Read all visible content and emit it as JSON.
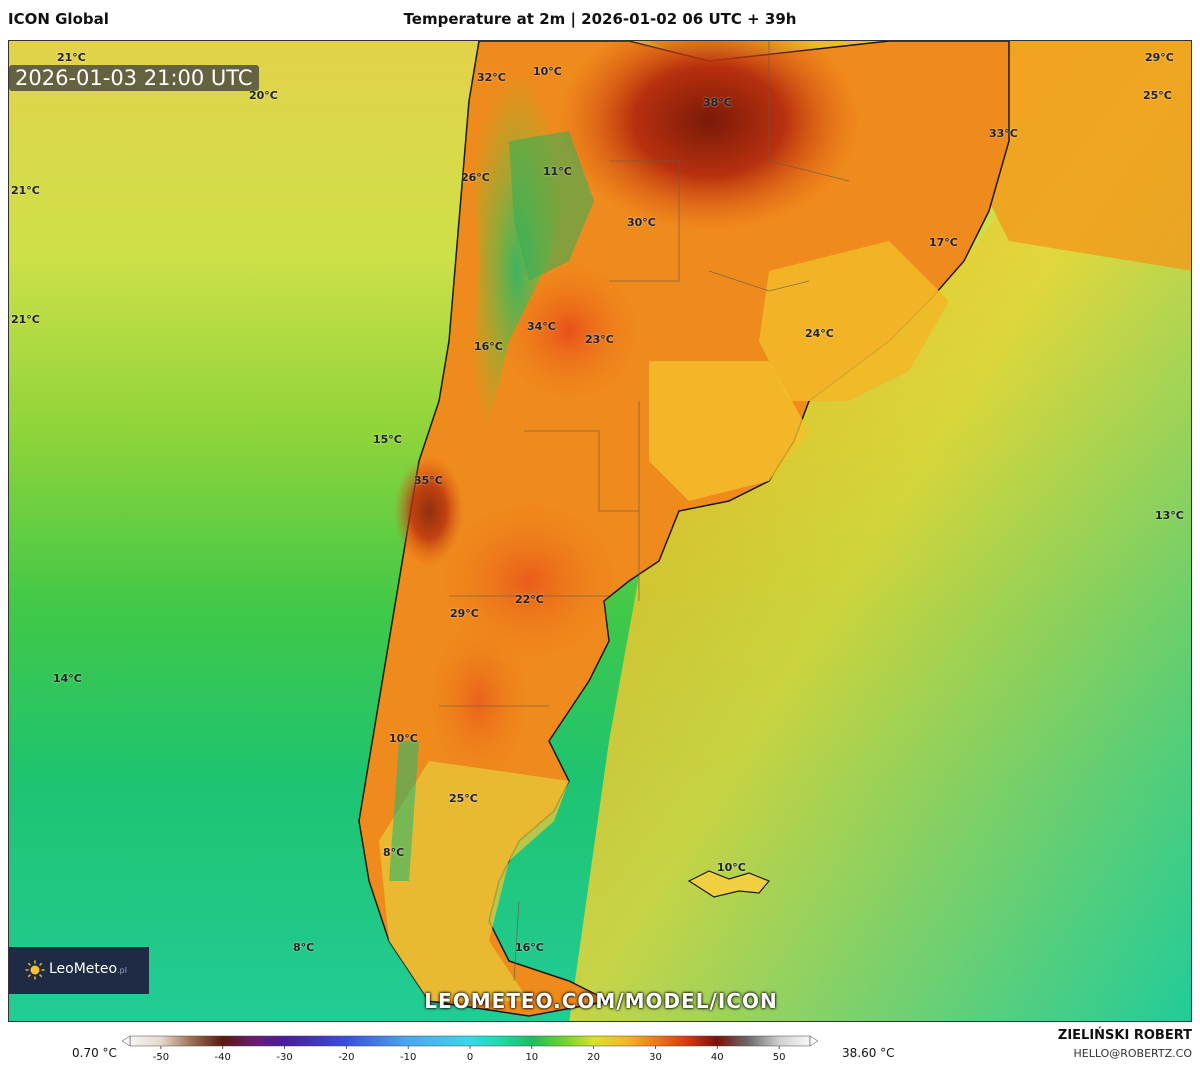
{
  "header": {
    "app_title": "ICON Global",
    "map_title": "Temperature at 2m | 2026-01-02 06 UTC + 39h"
  },
  "map": {
    "valid_time": "2026-01-03 21:00 UTC",
    "watermark": "LEOMETEO.COM/MODEL/ICON",
    "logo": {
      "name": "LeoMeteo",
      "tld": ".pl",
      "icon": "sun-icon"
    },
    "temperature_labels": [
      "21°C",
      "20°C",
      "32°C",
      "10°C",
      "38°C",
      "29°C",
      "25°C",
      "33°C",
      "21°C",
      "11°C",
      "26°C",
      "30°C",
      "17°C",
      "21°C",
      "34°C",
      "23°C",
      "24°C",
      "16°C",
      "15°C",
      "35°C",
      "13°C",
      "29°C",
      "22°C",
      "14°C",
      "10°C",
      "25°C",
      "8°C",
      "10°C",
      "8°C",
      "16°C"
    ]
  },
  "colorbar": {
    "min_label": "0.70 °C",
    "max_label": "38.60 °C",
    "ticks": [
      "-50",
      "-40",
      "-30",
      "-20",
      "-10",
      "0",
      "10",
      "20",
      "30",
      "40",
      "50"
    ],
    "stops": [
      {
        "value": -55,
        "color": "#f4f4f4"
      },
      {
        "value": -50,
        "color": "#e6d9cc"
      },
      {
        "value": -45,
        "color": "#9a6e52"
      },
      {
        "value": -40,
        "color": "#5a1810"
      },
      {
        "value": -35,
        "color": "#6a1a70"
      },
      {
        "value": -30,
        "color": "#4a1ca0"
      },
      {
        "value": -20,
        "color": "#3a4ee0"
      },
      {
        "value": -10,
        "color": "#4aa8f0"
      },
      {
        "value": 0,
        "color": "#38d8e8"
      },
      {
        "value": 5,
        "color": "#22d8a8"
      },
      {
        "value": 10,
        "color": "#18c060"
      },
      {
        "value": 15,
        "color": "#6ad428"
      },
      {
        "value": 20,
        "color": "#d8e030"
      },
      {
        "value": 25,
        "color": "#f2ba28"
      },
      {
        "value": 30,
        "color": "#f07a18"
      },
      {
        "value": 35,
        "color": "#d83a10"
      },
      {
        "value": 40,
        "color": "#7a1008"
      },
      {
        "value": 45,
        "color": "#6a6a6a"
      },
      {
        "value": 50,
        "color": "#cfcfcf"
      },
      {
        "value": 55,
        "color": "#f8f8f8"
      }
    ]
  },
  "credit": {
    "name": "ZIELIŃSKI ROBERT",
    "email": "HELLO@ROBERTZ.CO"
  }
}
